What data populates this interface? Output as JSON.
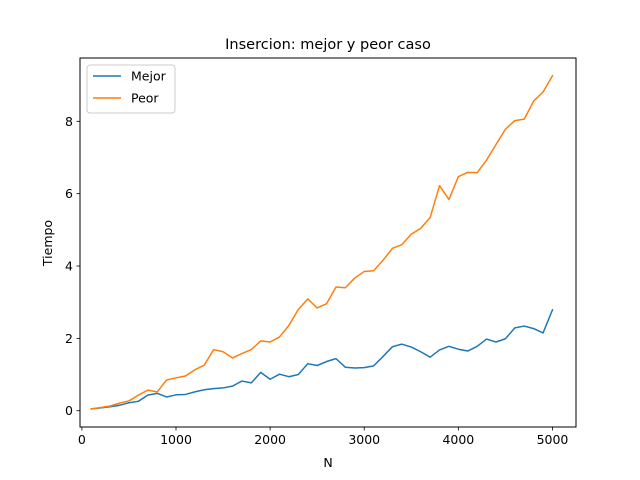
{
  "chart_data": {
    "type": "line",
    "title": "Insercion: mejor y peor caso",
    "xlabel": "N",
    "ylabel": "Tiempo",
    "xlim": [
      -20,
      5250
    ],
    "ylim": [
      -0.45,
      9.75
    ],
    "xticks": [
      0,
      1000,
      2000,
      3000,
      4000,
      5000
    ],
    "yticks": [
      0,
      2,
      4,
      6,
      8
    ],
    "grid": false,
    "legend_position": "upper-left",
    "x": [
      100,
      200,
      300,
      400,
      500,
      600,
      700,
      800,
      900,
      1000,
      1100,
      1200,
      1300,
      1400,
      1500,
      1600,
      1700,
      1800,
      1900,
      2000,
      2100,
      2200,
      2300,
      2400,
      2500,
      2600,
      2700,
      2800,
      2900,
      3000,
      3100,
      3200,
      3300,
      3400,
      3500,
      3600,
      3700,
      3800,
      3900,
      4000,
      4100,
      4200,
      4300,
      4400,
      4500,
      4600,
      4700,
      4800,
      4900,
      5000
    ],
    "series": [
      {
        "name": "Mejor",
        "color": "#1f77b4",
        "values": [
          0.05,
          0.08,
          0.11,
          0.15,
          0.22,
          0.26,
          0.43,
          0.48,
          0.38,
          0.44,
          0.45,
          0.52,
          0.58,
          0.61,
          0.63,
          0.68,
          0.82,
          0.77,
          1.06,
          0.87,
          1.01,
          0.94,
          1.0,
          1.3,
          1.25,
          1.36,
          1.44,
          1.2,
          1.18,
          1.19,
          1.24,
          1.5,
          1.77,
          1.84,
          1.76,
          1.63,
          1.48,
          1.68,
          1.78,
          1.7,
          1.65,
          1.78,
          1.98,
          1.9,
          1.99,
          2.29,
          2.34,
          2.27,
          2.15,
          2.79
        ]
      },
      {
        "name": "Peor",
        "color": "#ff7f0e",
        "values": [
          0.05,
          0.09,
          0.13,
          0.21,
          0.27,
          0.43,
          0.57,
          0.52,
          0.85,
          0.91,
          0.96,
          1.13,
          1.26,
          1.69,
          1.63,
          1.46,
          1.58,
          1.69,
          1.93,
          1.9,
          2.04,
          2.36,
          2.8,
          3.09,
          2.84,
          2.96,
          3.42,
          3.4,
          3.67,
          3.85,
          3.87,
          4.16,
          4.49,
          4.59,
          4.88,
          5.04,
          5.34,
          6.22,
          5.84,
          6.47,
          6.59,
          6.58,
          6.93,
          7.36,
          7.78,
          8.02,
          8.06,
          8.56,
          8.81,
          9.26
        ]
      }
    ]
  }
}
